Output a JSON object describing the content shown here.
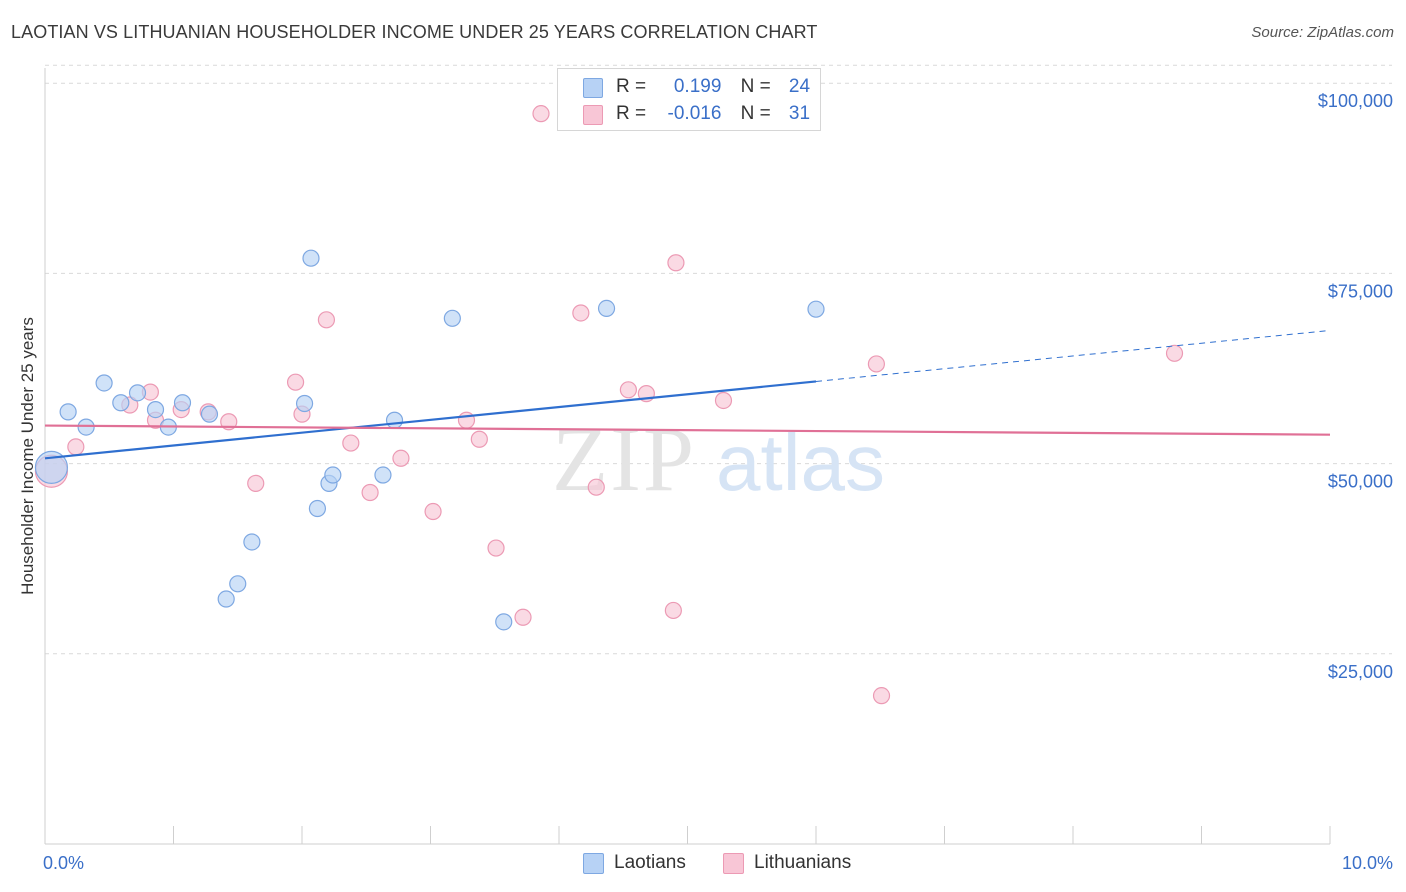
{
  "header": {
    "title": "LAOTIAN VS LITHUANIAN HOUSEHOLDER INCOME UNDER 25 YEARS CORRELATION CHART",
    "source_prefix": "Source: ",
    "source_name": "ZipAtlas.com"
  },
  "watermark": {
    "zip": "ZIP",
    "atlas": "atlas"
  },
  "legend": {
    "rows": [
      {
        "r_label": "R =",
        "r_value": "0.199",
        "n_label": "N =",
        "n_value": "24"
      },
      {
        "r_label": "R =",
        "r_value": "-0.016",
        "n_label": "N =",
        "n_value": "31"
      }
    ]
  },
  "colors": {
    "laotians_fill": "#b7d2f5",
    "laotians_stroke": "#7ea8e2",
    "laotians_line": "#2f6fcf",
    "lithuanians_fill": "#f8c6d6",
    "lithuanians_stroke": "#ec9ab4",
    "lithuanians_line": "#e07096",
    "axis_text": "#3a6fc8",
    "grid": "#d9d9d9"
  },
  "chart_data": {
    "type": "scatter",
    "title": "LAOTIAN VS LITHUANIAN HOUSEHOLDER INCOME UNDER 25 YEARS CORRELATION CHART",
    "xlabel": "",
    "ylabel": "Householder Income Under 25 years",
    "xlim": [
      0,
      10
    ],
    "ylim": [
      0,
      102000
    ],
    "x_unit": "%",
    "x_tick_labels": [
      "0.0%",
      "10.0%"
    ],
    "y_ticks": [
      25000,
      50000,
      75000,
      100000
    ],
    "y_tick_labels": [
      "$25,000",
      "$50,000",
      "$75,000",
      "$100,000"
    ],
    "grid": "horizontal dashed",
    "legend_position": "top-center",
    "series": [
      {
        "name": "Laotians",
        "r": 0.199,
        "n": 24,
        "trend": {
          "x": [
            0.0,
            6.0
          ],
          "y": [
            50700,
            60800
          ],
          "dashed_extension_x": [
            6.0,
            10.0
          ],
          "dashed_extension_y": [
            60800,
            67500
          ]
        },
        "points": [
          {
            "x": 0.05,
            "y": 49500,
            "size": "large"
          },
          {
            "x": 0.18,
            "y": 56800
          },
          {
            "x": 0.32,
            "y": 54800
          },
          {
            "x": 0.46,
            "y": 60600
          },
          {
            "x": 0.59,
            "y": 58000
          },
          {
            "x": 0.72,
            "y": 59300
          },
          {
            "x": 0.86,
            "y": 57100
          },
          {
            "x": 0.96,
            "y": 54800
          },
          {
            "x": 1.07,
            "y": 58000
          },
          {
            "x": 1.28,
            "y": 56500
          },
          {
            "x": 1.41,
            "y": 32200
          },
          {
            "x": 1.5,
            "y": 34200
          },
          {
            "x": 1.61,
            "y": 39700
          },
          {
            "x": 2.02,
            "y": 57900
          },
          {
            "x": 2.12,
            "y": 44100
          },
          {
            "x": 2.07,
            "y": 77000
          },
          {
            "x": 2.21,
            "y": 47400
          },
          {
            "x": 2.24,
            "y": 48500
          },
          {
            "x": 2.63,
            "y": 48500
          },
          {
            "x": 2.72,
            "y": 55700
          },
          {
            "x": 3.17,
            "y": 69100
          },
          {
            "x": 3.57,
            "y": 29200
          },
          {
            "x": 4.37,
            "y": 70400
          },
          {
            "x": 6.0,
            "y": 70300
          }
        ]
      },
      {
        "name": "Lithuanians",
        "r": -0.016,
        "n": 31,
        "trend": {
          "x": [
            0.0,
            10.0
          ],
          "y": [
            55000,
            53800
          ]
        },
        "points": [
          {
            "x": 0.05,
            "y": 49000,
            "size": "large"
          },
          {
            "x": 0.24,
            "y": 52200
          },
          {
            "x": 0.66,
            "y": 57700
          },
          {
            "x": 0.82,
            "y": 59400
          },
          {
            "x": 0.86,
            "y": 55700
          },
          {
            "x": 1.06,
            "y": 57100
          },
          {
            "x": 1.27,
            "y": 56800
          },
          {
            "x": 1.43,
            "y": 55500
          },
          {
            "x": 1.64,
            "y": 47400
          },
          {
            "x": 1.95,
            "y": 60700
          },
          {
            "x": 2.0,
            "y": 56500
          },
          {
            "x": 2.19,
            "y": 68900
          },
          {
            "x": 2.38,
            "y": 52700
          },
          {
            "x": 2.53,
            "y": 46200
          },
          {
            "x": 2.77,
            "y": 50700
          },
          {
            "x": 3.02,
            "y": 43700
          },
          {
            "x": 3.28,
            "y": 55700
          },
          {
            "x": 3.38,
            "y": 53200
          },
          {
            "x": 3.51,
            "y": 38900
          },
          {
            "x": 3.72,
            "y": 29800
          },
          {
            "x": 3.86,
            "y": 96000
          },
          {
            "x": 4.17,
            "y": 69800
          },
          {
            "x": 4.29,
            "y": 46900
          },
          {
            "x": 4.54,
            "y": 59700
          },
          {
            "x": 4.68,
            "y": 59200
          },
          {
            "x": 4.89,
            "y": 30700
          },
          {
            "x": 4.91,
            "y": 76400
          },
          {
            "x": 5.28,
            "y": 58300
          },
          {
            "x": 6.47,
            "y": 63100
          },
          {
            "x": 6.51,
            "y": 19500
          },
          {
            "x": 8.79,
            "y": 64500
          }
        ]
      }
    ]
  }
}
